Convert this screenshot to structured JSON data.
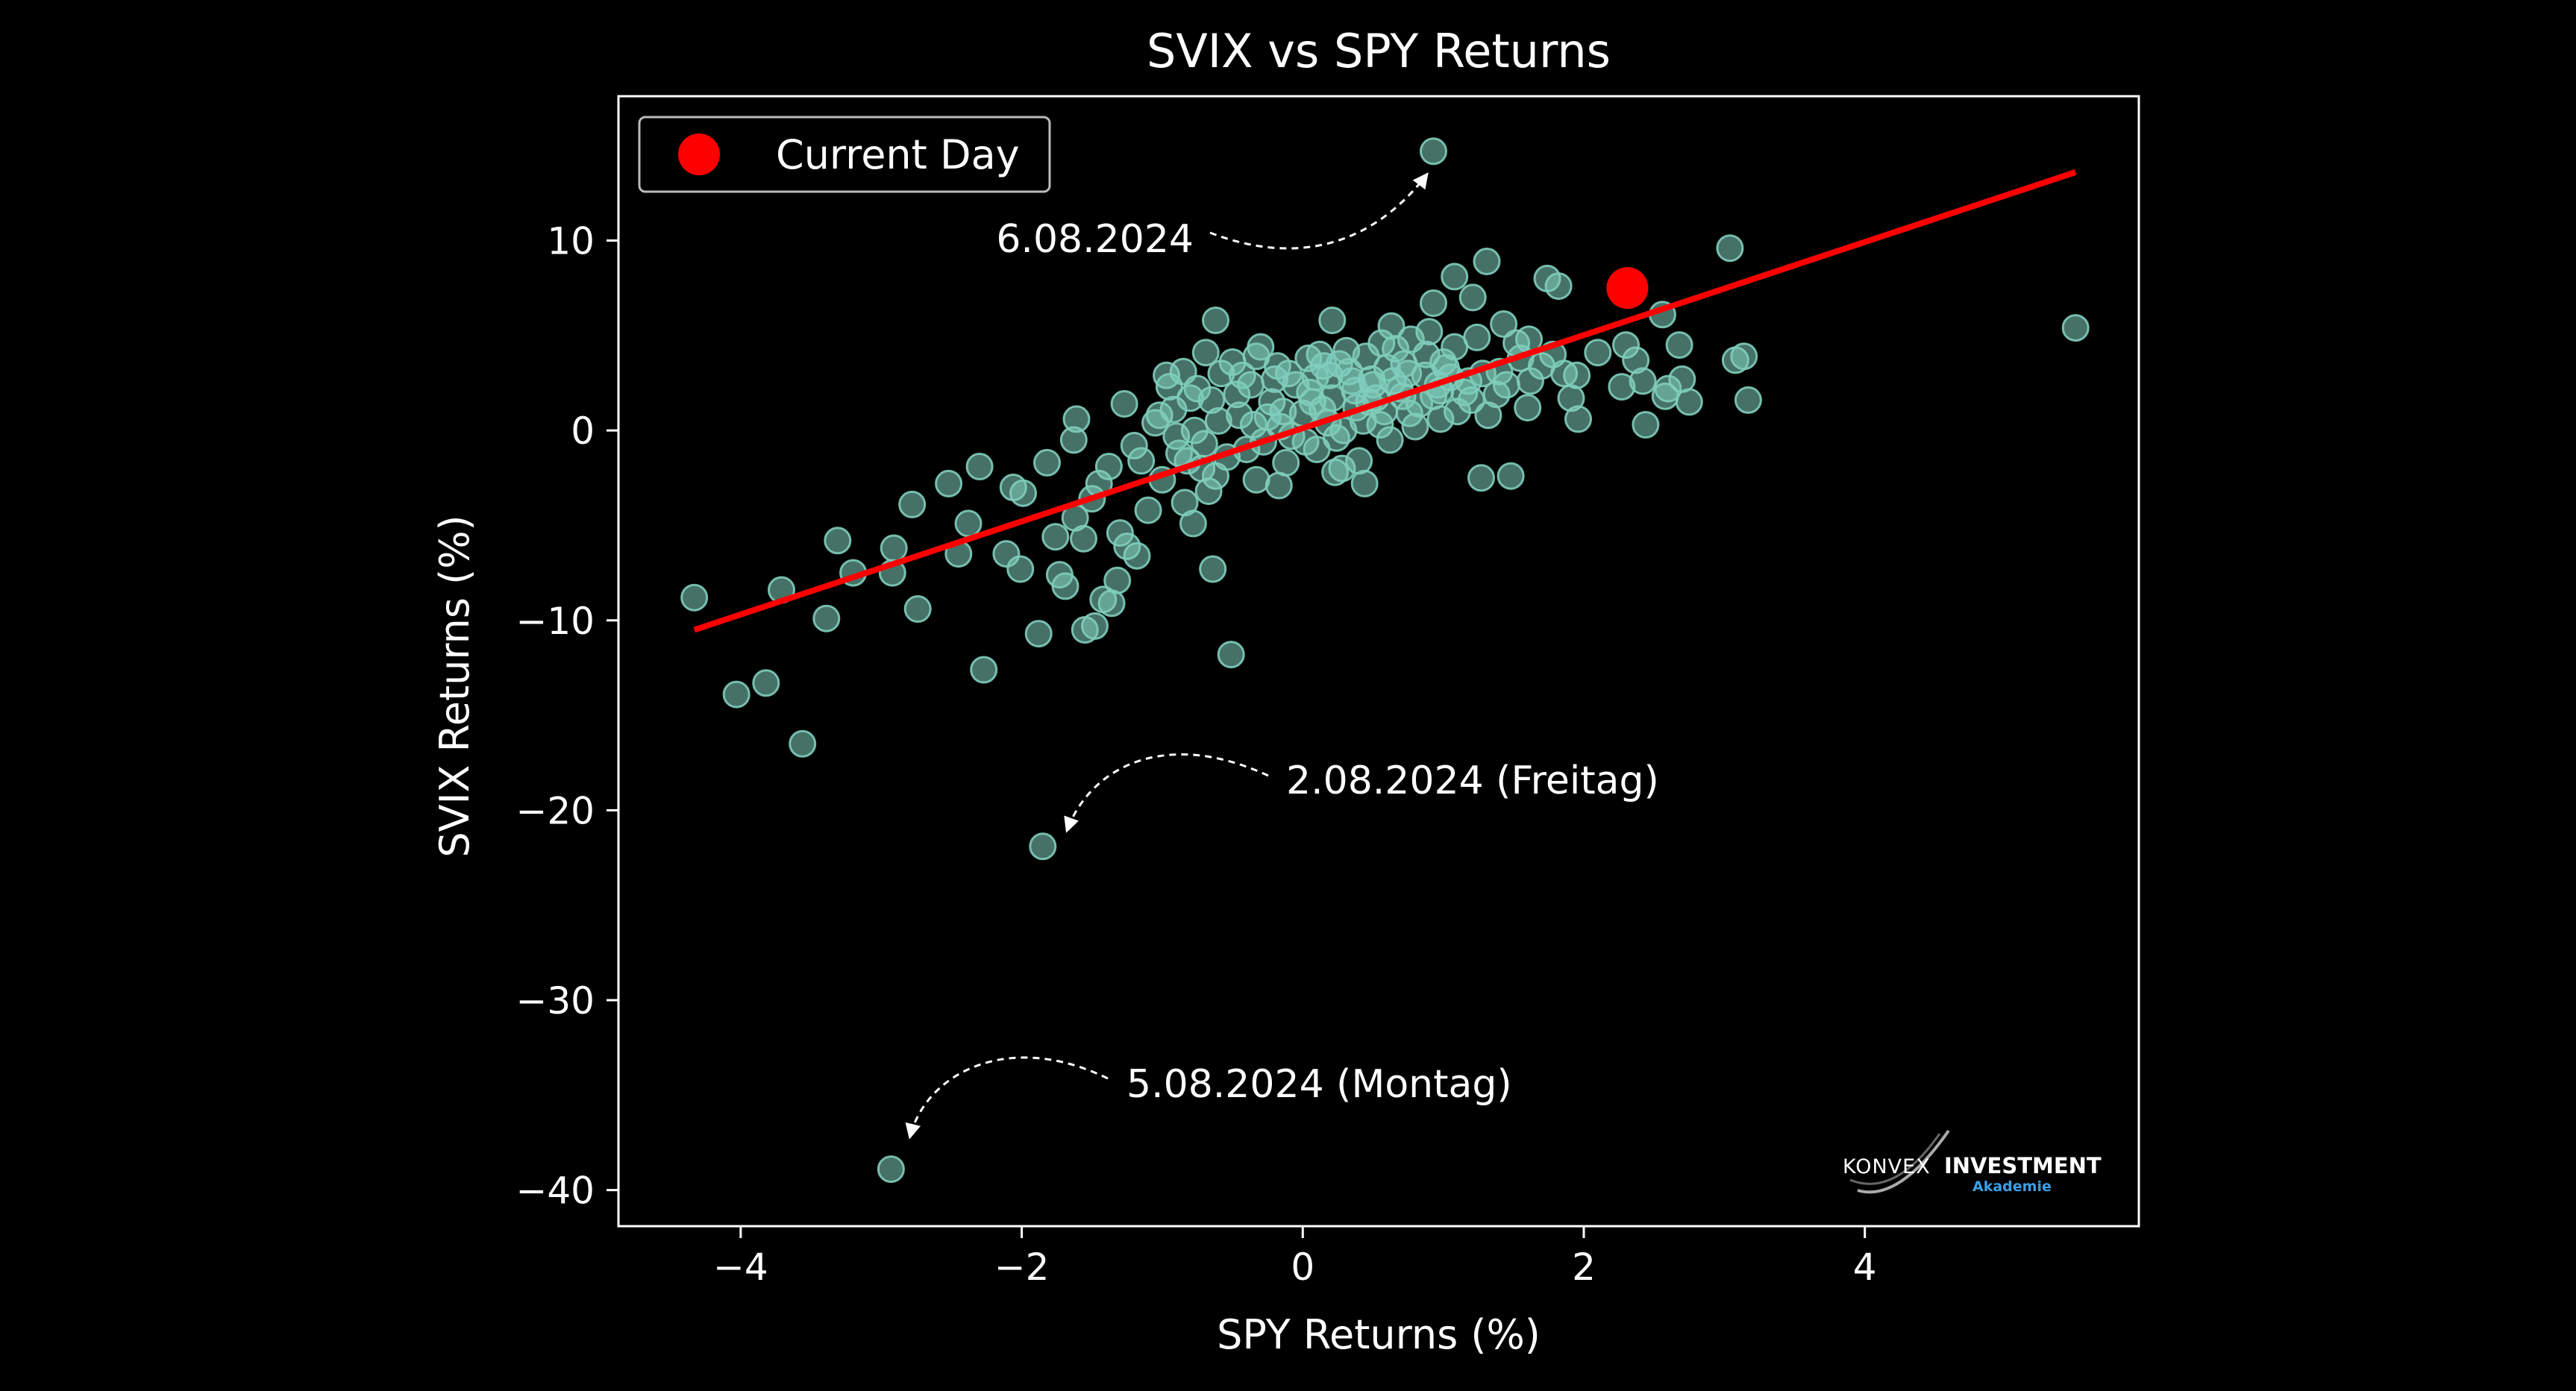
{
  "chart_data": {
    "type": "scatter",
    "title": "SVIX vs SPY Returns",
    "xlabel": "SPY Returns (%)",
    "ylabel": "SVIX Returns (%)",
    "xlim": [
      -4.87,
      5.95
    ],
    "ylim": [
      -41.9,
      17.6
    ],
    "xticks": [
      -4,
      -2,
      0,
      2,
      4
    ],
    "xtick_labels": [
      "−4",
      "−2",
      "0",
      "2",
      "4"
    ],
    "yticks": [
      -40,
      -30,
      -20,
      -10,
      0,
      10
    ],
    "ytick_labels": [
      "−40",
      "−30",
      "−20",
      "−10",
      "0",
      "10"
    ],
    "grid": false,
    "legend": {
      "placement": "top-left",
      "entries": [
        {
          "label": "Current Day",
          "color": "#ff0000"
        }
      ]
    },
    "colors": {
      "background": "#000000",
      "points": "#7fcdbb",
      "regression": "#ff0000",
      "current_day": "#ff0000",
      "text": "#ffffff"
    },
    "regression_line": {
      "x": [
        -4.33,
        5.5
      ],
      "y": [
        -10.5,
        13.6
      ]
    },
    "current_day": {
      "x": 2.31,
      "y": 7.5
    },
    "annotations": [
      {
        "text": "6.08.2024",
        "point": [
          0.93,
          14.7
        ]
      },
      {
        "text": "2.08.2024 (Freitag)",
        "point": [
          -1.85,
          -21.9
        ]
      },
      {
        "text": "5.08.2024 (Montag)",
        "point": [
          -2.93,
          -38.9
        ]
      }
    ],
    "points": [
      [
        0.93,
        14.7
      ],
      [
        -1.85,
        -21.9
      ],
      [
        -2.93,
        -38.9
      ],
      [
        -4.33,
        -8.8
      ],
      [
        -4.03,
        -13.9
      ],
      [
        -3.82,
        -13.3
      ],
      [
        -3.71,
        -8.4
      ],
      [
        -3.56,
        -16.5
      ],
      [
        -3.39,
        -9.9
      ],
      [
        -3.31,
        -5.8
      ],
      [
        -3.2,
        -7.5
      ],
      [
        -2.92,
        -7.5
      ],
      [
        -2.91,
        -6.2
      ],
      [
        -2.78,
        -3.9
      ],
      [
        -2.74,
        -9.4
      ],
      [
        -2.52,
        -2.8
      ],
      [
        -2.45,
        -6.5
      ],
      [
        -2.38,
        -4.9
      ],
      [
        -2.3,
        -1.9
      ],
      [
        -2.27,
        -12.6
      ],
      [
        -2.11,
        -6.5
      ],
      [
        -2.06,
        -3.0
      ],
      [
        -2.01,
        -7.3
      ],
      [
        -1.99,
        -3.3
      ],
      [
        -1.88,
        -10.7
      ],
      [
        -1.82,
        -1.7
      ],
      [
        -1.76,
        -5.6
      ],
      [
        -1.73,
        -7.6
      ],
      [
        -1.69,
        -8.2
      ],
      [
        -1.63,
        -0.5
      ],
      [
        -1.61,
        0.6
      ],
      [
        -1.55,
        -10.5
      ],
      [
        -1.48,
        -10.3
      ],
      [
        -1.42,
        -8.9
      ],
      [
        -1.36,
        -9.1
      ],
      [
        -1.32,
        -7.9
      ],
      [
        -1.25,
        -6.1
      ],
      [
        -1.15,
        -1.6
      ],
      [
        -0.95,
        2.3
      ],
      [
        -0.85,
        3.1
      ],
      [
        -0.78,
        -4.9
      ],
      [
        -0.69,
        4.1
      ],
      [
        -0.64,
        -7.3
      ],
      [
        -0.62,
        5.8
      ],
      [
        -0.51,
        -11.8
      ],
      [
        -0.33,
        3.9
      ],
      [
        -0.17,
        -2.9
      ],
      [
        0.04,
        3.8
      ],
      [
        0.21,
        5.8
      ],
      [
        0.28,
        -2.0
      ],
      [
        0.44,
        -2.8
      ],
      [
        0.63,
        5.5
      ],
      [
        0.77,
        4.8
      ],
      [
        0.93,
        6.7
      ],
      [
        0.98,
        2.1
      ],
      [
        1.08,
        8.1
      ],
      [
        1.21,
        7.0
      ],
      [
        1.27,
        -2.5
      ],
      [
        1.31,
        8.9
      ],
      [
        1.43,
        5.6
      ],
      [
        1.48,
        -2.4
      ],
      [
        1.61,
        4.8
      ],
      [
        1.74,
        8.0
      ],
      [
        1.82,
        7.6
      ],
      [
        1.91,
        1.7
      ],
      [
        1.96,
        0.6
      ],
      [
        2.1,
        4.1
      ],
      [
        2.27,
        2.3
      ],
      [
        2.42,
        2.6
      ],
      [
        2.56,
        6.1
      ],
      [
        2.6,
        2.2
      ],
      [
        2.68,
        4.5
      ],
      [
        3.04,
        9.6
      ],
      [
        2.3,
        4.5
      ],
      [
        2.37,
        3.7
      ],
      [
        2.44,
        0.3
      ],
      [
        2.58,
        1.8
      ],
      [
        2.7,
        2.7
      ],
      [
        2.75,
        1.5
      ],
      [
        3.08,
        3.7
      ],
      [
        3.14,
        3.9
      ],
      [
        3.17,
        1.6
      ],
      [
        5.5,
        5.4
      ],
      [
        0.14,
        1.1
      ],
      [
        -0.45,
        0.8
      ],
      [
        0.52,
        1.7
      ],
      [
        -0.28,
        -0.6
      ],
      [
        0.35,
        2.6
      ],
      [
        -0.88,
        -1.2
      ],
      [
        0.76,
        0.9
      ],
      [
        -0.1,
        3.0
      ],
      [
        1.05,
        2.8
      ],
      [
        -0.65,
        1.6
      ],
      [
        0.24,
        -0.4
      ],
      [
        -1.05,
        0.4
      ],
      [
        0.6,
        3.3
      ],
      [
        -0.37,
        2.4
      ],
      [
        1.2,
        1.6
      ],
      [
        -0.16,
        0.2
      ],
      [
        0.88,
        4.0
      ],
      [
        -0.72,
        -2.0
      ],
      [
        0.05,
        2.0
      ],
      [
        1.4,
        3.1
      ],
      [
        -1.2,
        -0.8
      ],
      [
        0.43,
        0.5
      ],
      [
        -0.54,
        -1.4
      ],
      [
        0.31,
        4.2
      ],
      [
        1.62,
        2.6
      ],
      [
        -0.22,
        1.5
      ],
      [
        0.69,
        2.2
      ],
      [
        -0.92,
        1.1
      ],
      [
        0.1,
        -1.0
      ],
      [
        1.0,
        3.6
      ],
      [
        -0.33,
        -2.6
      ],
      [
        0.56,
        4.6
      ],
      [
        -1.38,
        -1.9
      ],
      [
        0.19,
        2.9
      ],
      [
        1.78,
        4.0
      ],
      [
        -0.08,
        -0.3
      ],
      [
        0.83,
        1.4
      ],
      [
        -0.58,
        3.0
      ],
      [
        0.38,
        1.2
      ],
      [
        1.32,
        0.8
      ],
      [
        -1.5,
        -3.6
      ],
      [
        0.0,
        0.9
      ],
      [
        0.72,
        3.5
      ],
      [
        -0.77,
        0.0
      ],
      [
        0.26,
        3.5
      ],
      [
        1.1,
        1.0
      ],
      [
        -0.4,
        -1.0
      ],
      [
        0.49,
        2.7
      ],
      [
        -1.0,
        -2.6
      ],
      [
        0.62,
        -0.5
      ],
      [
        1.52,
        4.6
      ],
      [
        -0.2,
        2.7
      ],
      [
        0.96,
        2.4
      ],
      [
        -0.67,
        -3.2
      ],
      [
        0.12,
        4.0
      ],
      [
        -1.27,
        1.4
      ],
      [
        0.4,
        -1.6
      ],
      [
        1.24,
        4.9
      ],
      [
        -0.47,
        1.9
      ],
      [
        0.8,
        0.2
      ],
      [
        -0.84,
        -3.8
      ],
      [
        0.18,
        0.4
      ],
      [
        1.6,
        1.2
      ],
      [
        -0.3,
        4.4
      ],
      [
        0.58,
        1.0
      ],
      [
        -1.62,
        -4.6
      ],
      [
        0.33,
        3.1
      ],
      [
        1.15,
        2.0
      ],
      [
        -0.12,
        -1.7
      ],
      [
        0.9,
        5.2
      ],
      [
        -0.97,
        2.9
      ],
      [
        0.07,
        1.5
      ],
      [
        1.86,
        3.0
      ],
      [
        -0.6,
        0.5
      ],
      [
        0.45,
        3.9
      ],
      [
        -1.1,
        -4.2
      ],
      [
        0.71,
        1.8
      ],
      [
        1.45,
        2.4
      ],
      [
        -0.25,
        0.7
      ],
      [
        0.23,
        -2.2
      ],
      [
        -0.8,
        1.7
      ],
      [
        0.98,
        0.6
      ],
      [
        -1.45,
        -2.8
      ],
      [
        0.5,
        2.4
      ],
      [
        1.7,
        3.4
      ],
      [
        -0.05,
        2.4
      ],
      [
        0.66,
        4.3
      ],
      [
        -0.7,
        -0.7
      ],
      [
        0.29,
        0.0
      ],
      [
        1.28,
        3.0
      ],
      [
        -1.3,
        -5.4
      ],
      [
        0.15,
        3.4
      ],
      [
        0.87,
        2.9
      ],
      [
        -0.43,
        2.9
      ],
      [
        1.08,
        4.4
      ],
      [
        -0.9,
        -0.3
      ],
      [
        0.02,
        -0.6
      ],
      [
        1.38,
        1.9
      ],
      [
        -0.5,
        3.6
      ],
      [
        0.55,
        0.3
      ],
      [
        -1.18,
        -6.6
      ],
      [
        0.37,
        2.1
      ],
      [
        1.95,
        2.9
      ],
      [
        -0.18,
        3.4
      ],
      [
        0.75,
        3.0
      ],
      [
        -0.62,
        -2.4
      ],
      [
        0.21,
        1.7
      ],
      [
        1.18,
        2.6
      ],
      [
        -1.02,
        0.8
      ],
      [
        0.47,
        1.5
      ],
      [
        -0.35,
        0.3
      ],
      [
        1.55,
        3.8
      ],
      [
        -0.75,
        2.2
      ],
      [
        0.09,
        2.8
      ],
      [
        0.93,
        1.8
      ],
      [
        -1.56,
        -5.7
      ],
      [
        0.64,
        2.6
      ],
      [
        -0.14,
        1.0
      ],
      [
        1.02,
        3.3
      ],
      [
        -0.82,
        -1.6
      ]
    ]
  }
}
